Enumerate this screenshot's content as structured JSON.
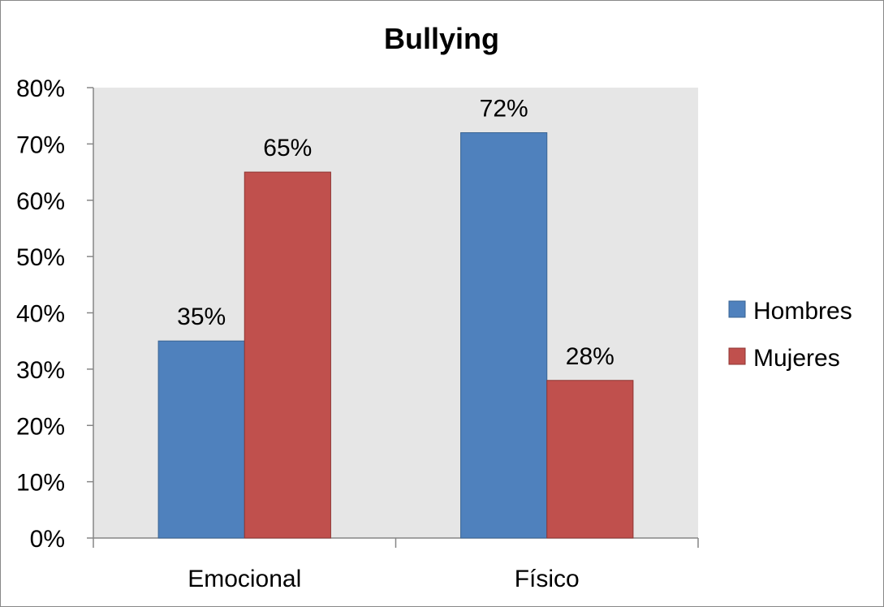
{
  "chart_data": {
    "type": "bar",
    "title": "Bullying",
    "categories": [
      "Emocional",
      "Físico"
    ],
    "series": [
      {
        "name": "Hombres",
        "values": [
          35,
          72
        ],
        "color": "#4F81BD",
        "stroke": "#3A6493"
      },
      {
        "name": "Mujeres",
        "values": [
          65,
          28
        ],
        "color": "#C0504D",
        "stroke": "#8E3532"
      }
    ],
    "data_labels": [
      [
        "35%",
        "72%"
      ],
      [
        "65%",
        "28%"
      ]
    ],
    "ylim": [
      0,
      80
    ],
    "yticks": [
      0,
      10,
      20,
      30,
      40,
      50,
      60,
      70,
      80
    ],
    "ytick_labels": [
      "0%",
      "10%",
      "20%",
      "30%",
      "40%",
      "50%",
      "60%",
      "70%",
      "80%"
    ],
    "xlabel": "",
    "ylabel": "",
    "legend_position": "right",
    "plot_background": "#E6E6E6",
    "grid": false
  }
}
